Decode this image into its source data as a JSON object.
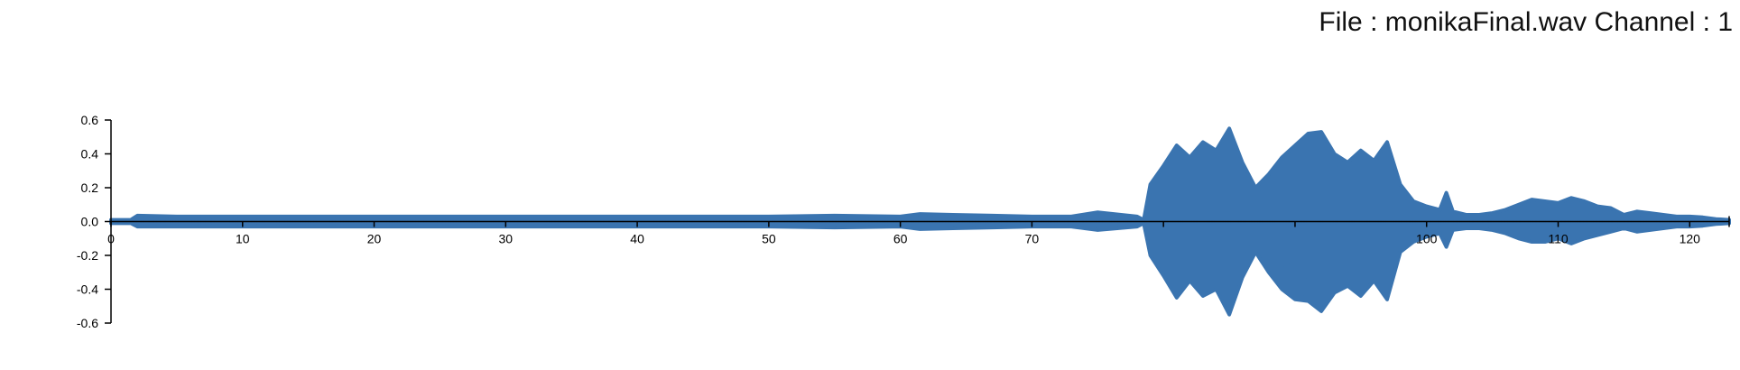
{
  "header": {
    "file_label": "File :",
    "file_name": "monikaFinal.wav",
    "channel_label": "Channel :",
    "channel_number": "1"
  },
  "colors": {
    "waveform": "#3a74b0",
    "axis": "#000000",
    "text": "#111111"
  },
  "chart_data": {
    "type": "line",
    "title": "File : monikaFinal.wav Channel : 1",
    "xlabel": "",
    "ylabel": "",
    "xlim": [
      0,
      123
    ],
    "ylim": [
      -0.6,
      0.6
    ],
    "grid": false,
    "legend": "none",
    "x_ticks": [
      0,
      10,
      20,
      30,
      40,
      50,
      60,
      70,
      80,
      90,
      100,
      110,
      120
    ],
    "x_tick_labels": [
      "0",
      "10",
      "20",
      "30",
      "40",
      "50",
      "60",
      "70",
      "",
      "",
      "100",
      "110",
      "120"
    ],
    "y_ticks": [
      0.6,
      0.4,
      0.2,
      0.0,
      -0.2,
      -0.4,
      -0.6
    ],
    "y_tick_labels": [
      "0.6",
      "0.4",
      "0.2",
      "0.0",
      "-0.2",
      "-0.4",
      "-0.6"
    ],
    "series": [
      {
        "name": "",
        "x": [
          0,
          1.5,
          2,
          5,
          10,
          20,
          30,
          40,
          50,
          55,
          60,
          61.5,
          64,
          67,
          70,
          73,
          75,
          78,
          78.5,
          79,
          80,
          81,
          82,
          83,
          84,
          85,
          86,
          87,
          88,
          89,
          90,
          91,
          92,
          93,
          94,
          95,
          96,
          97,
          98,
          99,
          100,
          101,
          101.5,
          102,
          103,
          104,
          105,
          106,
          107,
          108,
          109,
          110,
          111,
          112,
          113,
          114,
          115,
          116,
          117,
          118,
          119,
          120,
          121,
          122,
          123
        ],
        "upper": [
          0.01,
          0.01,
          0.035,
          0.03,
          0.03,
          0.03,
          0.03,
          0.03,
          0.03,
          0.035,
          0.03,
          0.045,
          0.04,
          0.035,
          0.03,
          0.03,
          0.055,
          0.03,
          0.01,
          0.22,
          0.33,
          0.45,
          0.38,
          0.47,
          0.42,
          0.55,
          0.35,
          0.2,
          0.28,
          0.38,
          0.45,
          0.52,
          0.53,
          0.4,
          0.35,
          0.42,
          0.36,
          0.47,
          0.22,
          0.12,
          0.09,
          0.07,
          0.17,
          0.06,
          0.04,
          0.04,
          0.05,
          0.07,
          0.1,
          0.13,
          0.12,
          0.11,
          0.14,
          0.12,
          0.09,
          0.08,
          0.04,
          0.06,
          0.05,
          0.04,
          0.03,
          0.03,
          0.025,
          0.015,
          0.01
        ],
        "lower": [
          -0.01,
          -0.01,
          -0.03,
          -0.03,
          -0.03,
          -0.03,
          -0.03,
          -0.03,
          -0.03,
          -0.035,
          -0.03,
          -0.045,
          -0.04,
          -0.035,
          -0.03,
          -0.03,
          -0.05,
          -0.03,
          -0.01,
          -0.2,
          -0.32,
          -0.45,
          -0.35,
          -0.44,
          -0.4,
          -0.55,
          -0.33,
          -0.18,
          -0.3,
          -0.4,
          -0.46,
          -0.47,
          -0.53,
          -0.42,
          -0.38,
          -0.44,
          -0.35,
          -0.46,
          -0.18,
          -0.12,
          -0.09,
          -0.07,
          -0.15,
          -0.05,
          -0.04,
          -0.04,
          -0.05,
          -0.07,
          -0.1,
          -0.12,
          -0.12,
          -0.1,
          -0.13,
          -0.1,
          -0.08,
          -0.06,
          -0.04,
          -0.06,
          -0.05,
          -0.04,
          -0.03,
          -0.03,
          -0.025,
          -0.015,
          -0.01
        ]
      }
    ]
  }
}
